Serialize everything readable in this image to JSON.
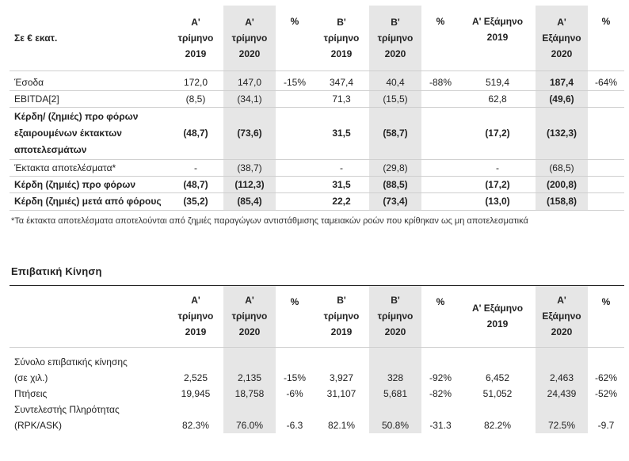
{
  "table1": {
    "headers": {
      "label": "Σε € εκατ.",
      "c1": [
        "Α'",
        "τρίμηνο",
        "2019"
      ],
      "c2": [
        "Α'",
        "τρίμηνο",
        "2020"
      ],
      "c3": "%",
      "c4": [
        "Β'",
        "τρίμηνο",
        "2019"
      ],
      "c5": [
        "Β'",
        "τρίμηνο",
        "2020"
      ],
      "c6": "%",
      "c7": [
        "Α' Εξάμηνο",
        "2019"
      ],
      "c8": [
        "Α'",
        "Εξάμηνο",
        "2020"
      ],
      "c9": "%"
    },
    "rows": [
      {
        "label": "Έσοδα",
        "v": [
          "172,0",
          "147,0",
          "-15%",
          "347,4",
          "40,4",
          "-88%",
          "519,4",
          "187,4",
          "-64%"
        ]
      },
      {
        "label": "EBITDA[2]",
        "v": [
          "(8,5)",
          "(34,1)",
          "",
          "71,3",
          "(15,5)",
          "",
          "62,8",
          "(49,6)",
          ""
        ]
      },
      {
        "label": "Κέρδη/ (ζημιές) προ φόρων εξαιρουμένων έκτακτων αποτελεσμάτων",
        "v": [
          "(48,7)",
          "(73,6)",
          "",
          "31,5",
          "(58,7)",
          "",
          "(17,2)",
          "(132,3)",
          ""
        ]
      },
      {
        "label": "Έκτακτα αποτελέσματα*",
        "v": [
          "-",
          "(38,7)",
          "",
          "-",
          "(29,8)",
          "",
          "-",
          "(68,5)",
          ""
        ]
      },
      {
        "label": "Κέρδη (ζημιές) προ φόρων",
        "v": [
          "(48,7)",
          "(112,3)",
          "",
          "31,5",
          "(88,5)",
          "",
          "(17,2)",
          "(200,8)",
          ""
        ]
      },
      {
        "label": "Κέρδη (ζημιές) μετά από φόρους",
        "v": [
          "(35,2)",
          "(85,4)",
          "",
          "22,2",
          "(73,4)",
          "",
          "(13,0)",
          "(158,8)",
          ""
        ]
      }
    ],
    "note": "*Τα έκτακτα αποτελέσματα αποτελούνται από ζημιές παραγώγων αντιστάθμισης ταμειακών ροών που κρίθηκαν ως μη αποτελεσματικά"
  },
  "section_title": "Επιβατική Κίνηση",
  "table2": {
    "headers": {
      "label": "",
      "c1": [
        "Α'",
        "τρίμηνο",
        "2019"
      ],
      "c2": [
        "Α'",
        "τρίμηνο",
        "2020"
      ],
      "c3": "%",
      "c4": [
        "Β'",
        "τρίμηνο",
        "2019"
      ],
      "c5": [
        "Β'",
        "τρίμηνο",
        "2020"
      ],
      "c6": "%",
      "c7": [
        "Α' Εξάμηνο",
        "2019"
      ],
      "c8": [
        "Α'",
        "Εξάμηνο",
        "2020"
      ],
      "c9": "%"
    },
    "rows": [
      {
        "label1": "Σύνολο επιβατικής κίνησης",
        "label2": "(σε χιλ.)",
        "v": [
          "2,525",
          "2,135",
          "-15%",
          "3,927",
          "328",
          "-92%",
          "6,452",
          "2,463",
          "-62%"
        ]
      },
      {
        "label1": "Πτήσεις",
        "label2": "",
        "v": [
          "19,945",
          "18,758",
          "-6%",
          "31,107",
          "5,681",
          "-82%",
          "51,052",
          "24,439",
          "-52%"
        ]
      },
      {
        "label1": "Συντελεστής Πληρότητας",
        "label2": "(RPK/ASK)",
        "v": [
          "82.3%",
          "76.0%",
          "-6.3",
          "82.1%",
          "50.8%",
          "-31.3",
          "82.2%",
          "72.5%",
          "-9.7"
        ]
      }
    ]
  }
}
